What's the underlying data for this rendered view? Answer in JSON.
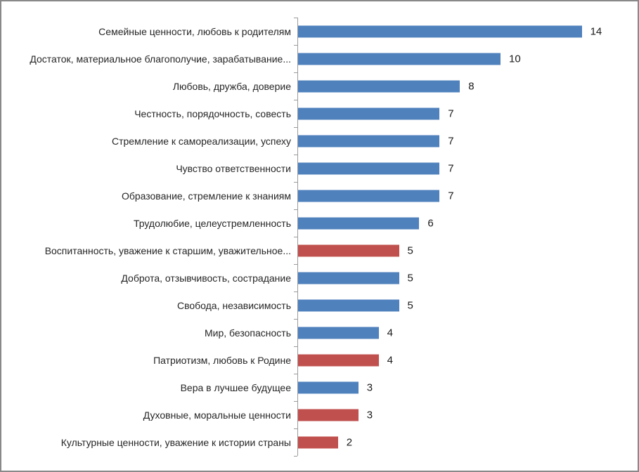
{
  "chart_data": {
    "type": "bar",
    "orientation": "horizontal",
    "title": "",
    "xlabel": "",
    "ylabel": "",
    "xlim": [
      0,
      14
    ],
    "grid": false,
    "legend": false,
    "value_labels_position": "end-of-bar",
    "categories": [
      "Семейные ценности, любовь к родителям",
      "Достаток, материальное благополучие, зарабатывание...",
      "Любовь, дружба, доверие",
      "Честность, порядочность, совесть",
      "Стремление к самореализации, успеху",
      "Чувство ответственности",
      "Образование, стремление к знаниям",
      "Трудолюбие, целеустремленность",
      "Воспитанность, уважение к старшим, уважительное...",
      "Доброта, отзывчивость, сострадание",
      "Свобода, независимость",
      "Мир, безопасность",
      "Патриотизм, любовь к Родине",
      "Вера в лучшее будущее",
      "Духовные, моральные ценности",
      "Культурные ценности, уважение к истории страны"
    ],
    "values": [
      14,
      10,
      8,
      7,
      7,
      7,
      7,
      6,
      5,
      5,
      5,
      4,
      4,
      3,
      3,
      2
    ],
    "bar_colors": [
      "#4f81bd",
      "#4f81bd",
      "#4f81bd",
      "#4f81bd",
      "#4f81bd",
      "#4f81bd",
      "#4f81bd",
      "#4f81bd",
      "#c0504d",
      "#4f81bd",
      "#4f81bd",
      "#4f81bd",
      "#c0504d",
      "#4f81bd",
      "#c0504d",
      "#c0504d"
    ],
    "palette": {
      "primary_blue": "#4f81bd",
      "accent_red": "#c0504d"
    }
  },
  "frame": {
    "background": "#ffffff",
    "border_color": "#898989",
    "axis_color": "#9b9b9b",
    "label_color": "#262626"
  }
}
